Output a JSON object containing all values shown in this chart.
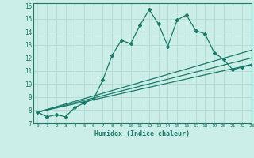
{
  "xlabel": "Humidex (Indice chaleur)",
  "bg_color": "#cceee8",
  "grid_color": "#b8ddd7",
  "line_color": "#1a7a6a",
  "xlim": [
    -0.5,
    23
  ],
  "ylim": [
    7,
    16.2
  ],
  "xticks": [
    0,
    1,
    2,
    3,
    4,
    5,
    6,
    7,
    8,
    9,
    10,
    11,
    12,
    13,
    14,
    15,
    16,
    17,
    18,
    19,
    20,
    21,
    22,
    23
  ],
  "yticks": [
    7,
    8,
    9,
    10,
    11,
    12,
    13,
    14,
    15,
    16
  ],
  "main_x": [
    0,
    1,
    2,
    3,
    4,
    5,
    6,
    7,
    8,
    9,
    10,
    11,
    12,
    13,
    14,
    15,
    16,
    17,
    18,
    19,
    20,
    21,
    22,
    23
  ],
  "main_y": [
    7.85,
    7.5,
    7.65,
    7.5,
    8.2,
    8.55,
    8.85,
    10.3,
    12.2,
    13.35,
    13.1,
    14.5,
    15.7,
    14.6,
    12.9,
    14.9,
    15.3,
    14.1,
    13.85,
    12.4,
    11.9,
    11.1,
    11.3,
    11.5
  ],
  "line2_x": [
    0,
    23
  ],
  "line2_y": [
    7.85,
    11.5
  ],
  "line3_x": [
    0,
    23
  ],
  "line3_y": [
    7.85,
    12.0
  ],
  "line4_x": [
    0,
    23
  ],
  "line4_y": [
    7.85,
    12.6
  ]
}
